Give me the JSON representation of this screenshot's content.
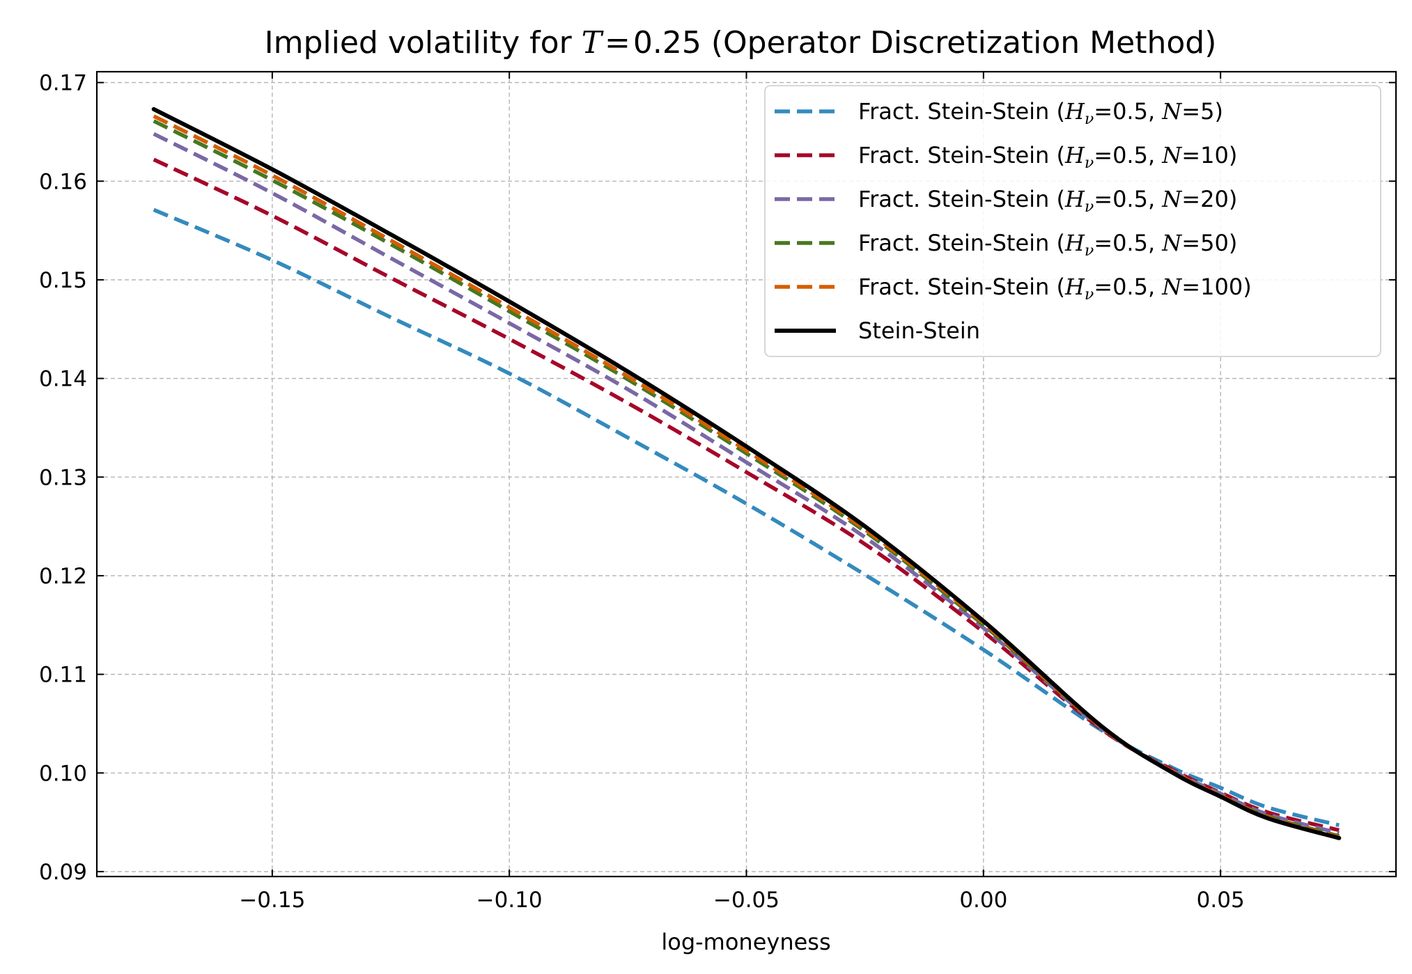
{
  "chart_data": {
    "type": "line",
    "title_parts": [
      "Implied volatility for ",
      "T",
      "=",
      "0.25",
      " (Operator Discretization Method)"
    ],
    "xlabel": "log-moneyness",
    "ylabel": "",
    "xlim": [
      -0.187,
      0.087
    ],
    "ylim": [
      0.0895,
      0.1711
    ],
    "x_ticks": [
      -0.15,
      -0.1,
      -0.05,
      0.0,
      0.05
    ],
    "x_tick_labels": [
      "−0.15",
      "−0.10",
      "−0.05",
      "0.00",
      "0.05"
    ],
    "y_ticks": [
      0.09,
      0.1,
      0.11,
      0.12,
      0.13,
      0.14,
      0.15,
      0.16,
      0.17
    ],
    "y_tick_labels": [
      "0.09",
      "0.10",
      "0.11",
      "0.12",
      "0.13",
      "0.14",
      "0.15",
      "0.16",
      "0.17"
    ],
    "grid": true,
    "legend_position": "top-right",
    "x": [
      -0.175,
      -0.15,
      -0.125,
      -0.1,
      -0.075,
      -0.05,
      -0.025,
      0.0,
      0.025,
      0.04,
      0.05,
      0.06,
      0.075
    ],
    "series": [
      {
        "name": "Fract. Stein-Stein (Hν=0.5, N=5)",
        "label_prefix": "Fract. Stein-Stein (",
        "label_var1": "H",
        "label_sub": "ν",
        "label_mid": "=0.5, ",
        "label_var2": "N",
        "label_end": "=5)",
        "color": "#348abd",
        "dashed": true,
        "values": [
          0.1571,
          0.152,
          0.1462,
          0.1405,
          0.134,
          0.1273,
          0.1201,
          0.1125,
          0.1043,
          0.1005,
          0.0985,
          0.0965,
          0.0947
        ]
      },
      {
        "name": "Fract. Stein-Stein (Hν=0.5, N=10)",
        "label_prefix": "Fract. Stein-Stein (",
        "label_var1": "H",
        "label_sub": "ν",
        "label_mid": "=0.5, ",
        "label_var2": "N",
        "label_end": "=10)",
        "color": "#a60628",
        "dashed": true,
        "values": [
          0.1622,
          0.1565,
          0.1502,
          0.144,
          0.1375,
          0.1305,
          0.1232,
          0.1143,
          0.1044,
          0.1003,
          0.098,
          0.096,
          0.0942
        ]
      },
      {
        "name": "Fract. Stein-Stein (Hν=0.5, N=20)",
        "label_prefix": "Fract. Stein-Stein (",
        "label_var1": "H",
        "label_sub": "ν",
        "label_mid": "=0.5, ",
        "label_var2": "N",
        "label_end": "=20)",
        "color": "#7a68a6",
        "dashed": true,
        "values": [
          0.1648,
          0.1588,
          0.1522,
          0.1456,
          0.1389,
          0.1315,
          0.1239,
          0.1147,
          0.1045,
          0.1002,
          0.0979,
          0.0958,
          0.0939
        ]
      },
      {
        "name": "Fract. Stein-Stein (Hν=0.5, N=50)",
        "label_prefix": "Fract. Stein-Stein (",
        "label_var1": "H",
        "label_sub": "ν",
        "label_mid": "=0.5, ",
        "label_var2": "N",
        "label_end": "=50)",
        "color": "#467821",
        "dashed": true,
        "values": [
          0.1661,
          0.1601,
          0.1536,
          0.1468,
          0.1399,
          0.1324,
          0.1245,
          0.115,
          0.1046,
          0.1001,
          0.0977,
          0.0956,
          0.0936
        ]
      },
      {
        "name": "Fract. Stein-Stein (Hν=0.5, N=100)",
        "label_prefix": "Fract. Stein-Stein (",
        "label_var1": "H",
        "label_sub": "ν",
        "label_mid": "=0.5, ",
        "label_var2": "N",
        "label_end": "=100)",
        "color": "#d55e00",
        "dashed": true,
        "values": [
          0.1666,
          0.1606,
          0.154,
          0.1472,
          0.1402,
          0.1327,
          0.1247,
          0.1152,
          0.1046,
          0.1001,
          0.0977,
          0.0955,
          0.0935
        ]
      },
      {
        "name": "Stein-Stein",
        "label_prefix": "Stein-Stein",
        "label_var1": "",
        "label_sub": "",
        "label_mid": "",
        "label_var2": "",
        "label_end": "",
        "color": "#000000",
        "dashed": false,
        "values": [
          0.1673,
          0.1612,
          0.1546,
          0.1478,
          0.1407,
          0.1331,
          0.125,
          0.1154,
          0.1047,
          0.1,
          0.0976,
          0.0954,
          0.0934
        ]
      }
    ]
  }
}
